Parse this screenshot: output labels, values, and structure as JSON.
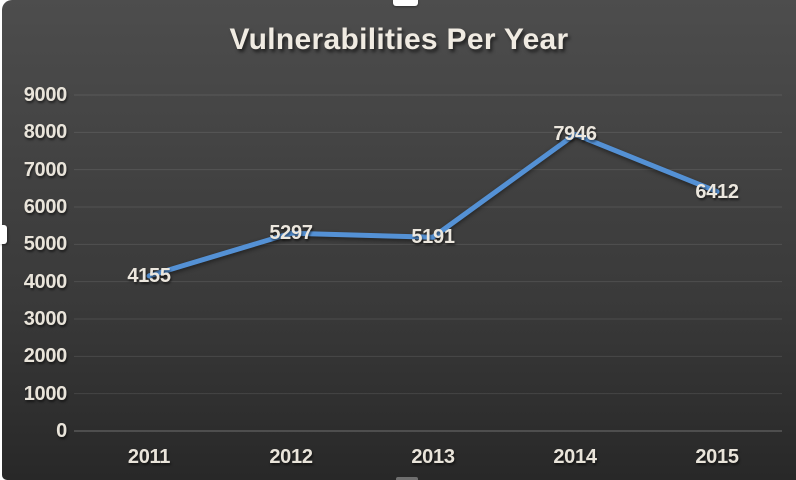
{
  "chart_data": {
    "type": "line",
    "title": "Vulnerabilities Per Year",
    "categories": [
      "2011",
      "2012",
      "2013",
      "2014",
      "2015"
    ],
    "series": [
      {
        "values": [
          4155,
          5297,
          5191,
          7946,
          6412
        ]
      }
    ],
    "data_labels": [
      "4155",
      "5297",
      "5191",
      "7946",
      "6412"
    ],
    "xlabel": "",
    "ylabel": "",
    "ylim": [
      0,
      9000
    ],
    "y_tick_step": 1000,
    "y_tick_labels": [
      "0",
      "1000",
      "2000",
      "3000",
      "4000",
      "5000",
      "6000",
      "7000",
      "8000",
      "9000"
    ],
    "grid": true,
    "legend": "none",
    "colors": {
      "line": "#5491D5",
      "data_label_text": "#ECE7DE",
      "tick_label_text": "#E9E4DA",
      "title_text": "#F0EBE2",
      "background_top": "#4D4D4D",
      "background_bottom": "#282828",
      "gridline": "rgba(255,255,255,0.10)",
      "axis_line": "rgba(255,255,255,0.32)"
    }
  },
  "selection": {
    "handle_names": [
      "top-center-resize-handle",
      "left-middle-resize-handle",
      "bottom-center-resize-handle"
    ]
  }
}
